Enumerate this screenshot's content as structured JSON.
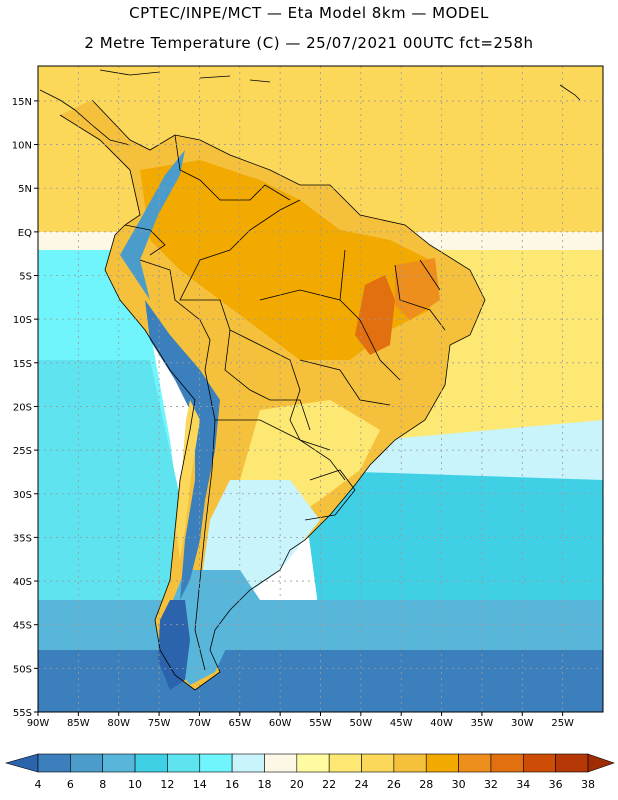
{
  "header": {
    "line1": "CPTEC/INPE/MCT —  Eta Model 8km — MODEL",
    "line2": "2 Metre Temperature (C) — 25/07/2021 00UTC fct=258h"
  },
  "map": {
    "lon_range": [
      -90,
      -20
    ],
    "lat_range": [
      -55,
      19
    ],
    "lat_ticks": [
      {
        "value": 15,
        "label": "15N"
      },
      {
        "value": 10,
        "label": "10N"
      },
      {
        "value": 5,
        "label": "5N"
      },
      {
        "value": 0,
        "label": "EQ"
      },
      {
        "value": -5,
        "label": "5S"
      },
      {
        "value": -10,
        "label": "10S"
      },
      {
        "value": -15,
        "label": "15S"
      },
      {
        "value": -20,
        "label": "20S"
      },
      {
        "value": -25,
        "label": "25S"
      },
      {
        "value": -30,
        "label": "30S"
      },
      {
        "value": -35,
        "label": "35S"
      },
      {
        "value": -40,
        "label": "40S"
      },
      {
        "value": -45,
        "label": "45S"
      },
      {
        "value": -50,
        "label": "50S"
      },
      {
        "value": -55,
        "label": "55S"
      }
    ],
    "lon_ticks": [
      {
        "value": -90,
        "label": "90W"
      },
      {
        "value": -85,
        "label": "85W"
      },
      {
        "value": -80,
        "label": "80W"
      },
      {
        "value": -75,
        "label": "75W"
      },
      {
        "value": -70,
        "label": "70W"
      },
      {
        "value": -65,
        "label": "65W"
      },
      {
        "value": -60,
        "label": "60W"
      },
      {
        "value": -55,
        "label": "55W"
      },
      {
        "value": -50,
        "label": "50W"
      },
      {
        "value": -45,
        "label": "45W"
      },
      {
        "value": -40,
        "label": "40W"
      },
      {
        "value": -35,
        "label": "35W"
      },
      {
        "value": -30,
        "label": "30W"
      },
      {
        "value": -25,
        "label": "25W"
      }
    ],
    "grid": true
  },
  "colorbar": {
    "labels": [
      "4",
      "6",
      "8",
      "10",
      "12",
      "14",
      "16",
      "18",
      "20",
      "22",
      "24",
      "26",
      "28",
      "30",
      "32",
      "34",
      "36",
      "38"
    ],
    "colors": [
      "#2b64ad",
      "#3b7fbc",
      "#4c9ccb",
      "#57b6d9",
      "#3fd0e6",
      "#5ee3ef",
      "#6ff5fb",
      "#c9f4fb",
      "#fdf7e6",
      "#fffba0",
      "#fde873",
      "#fbd75a",
      "#f5c13c",
      "#f2a900",
      "#ee8e1d",
      "#e27010",
      "#cd4d06",
      "#b53806",
      "#9e2c05"
    ]
  },
  "palette": {
    "ocean_far": "#2b64ad",
    "ocean_south": "#3b7fbc",
    "ocean_mid": "#57b6d9",
    "ocean_cool": "#6ff5fb",
    "ocean_warm": "#fbd75a",
    "land_hot": "#f2a900",
    "land_warm": "#f5c13c",
    "land_mild": "#fffba0",
    "andes_cold": "#4c9ccb",
    "border": "#000000"
  }
}
